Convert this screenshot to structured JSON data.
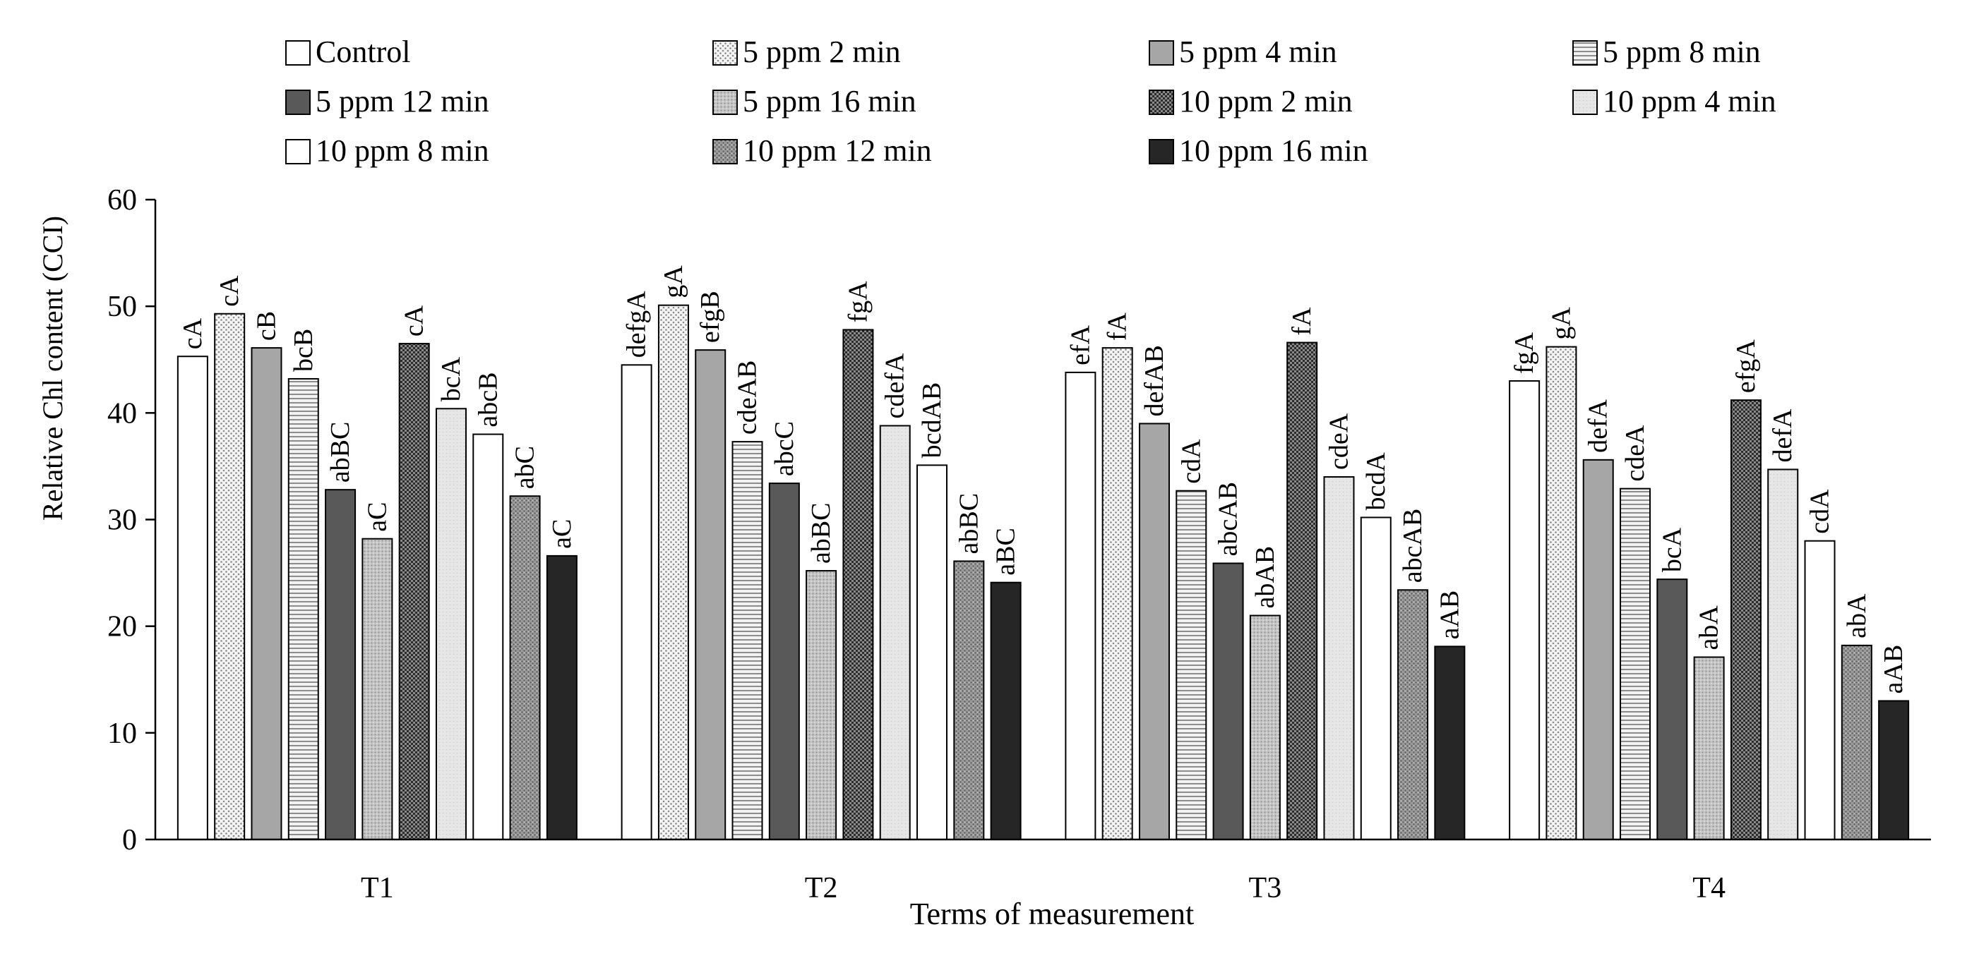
{
  "chart_data": {
    "type": "bar",
    "title": "",
    "xlabel": "Terms of measurement",
    "ylabel": "Relative Chl content (CCI)",
    "ylim": [
      0,
      60
    ],
    "yticks": [
      0,
      10,
      20,
      30,
      40,
      50,
      60
    ],
    "ytick_labels": [
      "0",
      "10",
      "20",
      "30",
      "40",
      "50",
      "60"
    ],
    "grid": false,
    "legend_position": "top",
    "categories": [
      "T1",
      "T2",
      "T3",
      "T4"
    ],
    "series": [
      {
        "name": "Control",
        "pattern": "white",
        "values": [
          45.3,
          44.5,
          43.8,
          43.0
        ],
        "labels": [
          "cA",
          "defgA",
          "efA",
          "fgA"
        ]
      },
      {
        "name": "5 ppm 2 min",
        "pattern": "dots",
        "values": [
          49.3,
          50.1,
          46.1,
          46.2
        ],
        "labels": [
          "cA",
          "gA",
          "fA",
          "gA"
        ]
      },
      {
        "name": "5 ppm 4 min",
        "pattern": "gray",
        "values": [
          46.1,
          45.9,
          39.0,
          35.6
        ],
        "labels": [
          "cB",
          "efgB",
          "defAB",
          "defA"
        ]
      },
      {
        "name": "5 ppm 8 min",
        "pattern": "hlines",
        "values": [
          43.2,
          37.3,
          32.7,
          32.9
        ],
        "labels": [
          "bcB",
          "cdeAB",
          "cdA",
          "cdeA"
        ]
      },
      {
        "name": "5 ppm 12 min",
        "pattern": "dark",
        "values": [
          32.8,
          33.4,
          25.9,
          24.4
        ],
        "labels": [
          "abBC",
          "abcC",
          "abcAB",
          "bcA"
        ]
      },
      {
        "name": "5 ppm 16 min",
        "pattern": "fine-dots",
        "values": [
          28.2,
          25.2,
          21.0,
          17.1
        ],
        "labels": [
          "aC",
          "abBC",
          "abAB",
          "abA"
        ]
      },
      {
        "name": "10 ppm 2 min",
        "pattern": "checker",
        "values": [
          46.5,
          47.8,
          46.6,
          41.2
        ],
        "labels": [
          "cA",
          "fgA",
          "fA",
          "efgA"
        ]
      },
      {
        "name": "10 ppm 4 min",
        "pattern": "light",
        "values": [
          40.4,
          38.8,
          34.0,
          34.7
        ],
        "labels": [
          "bcA",
          "cdefA",
          "cdeA",
          "defA"
        ]
      },
      {
        "name": "10 ppm 8 min",
        "pattern": "white",
        "values": [
          38.0,
          35.1,
          30.2,
          28.0
        ],
        "labels": [
          "abcB",
          "bcdAB",
          "bcdA",
          "cdA"
        ]
      },
      {
        "name": "10 ppm 12 min",
        "pattern": "grain",
        "values": [
          32.2,
          26.1,
          23.4,
          18.2
        ],
        "labels": [
          "abC",
          "abBC",
          "abcAB",
          "abA"
        ]
      },
      {
        "name": "10 ppm 16 min",
        "pattern": "black",
        "values": [
          26.6,
          24.1,
          18.1,
          13.0
        ],
        "labels": [
          "aC",
          "aBC",
          "aAB",
          "aAB"
        ]
      }
    ]
  }
}
